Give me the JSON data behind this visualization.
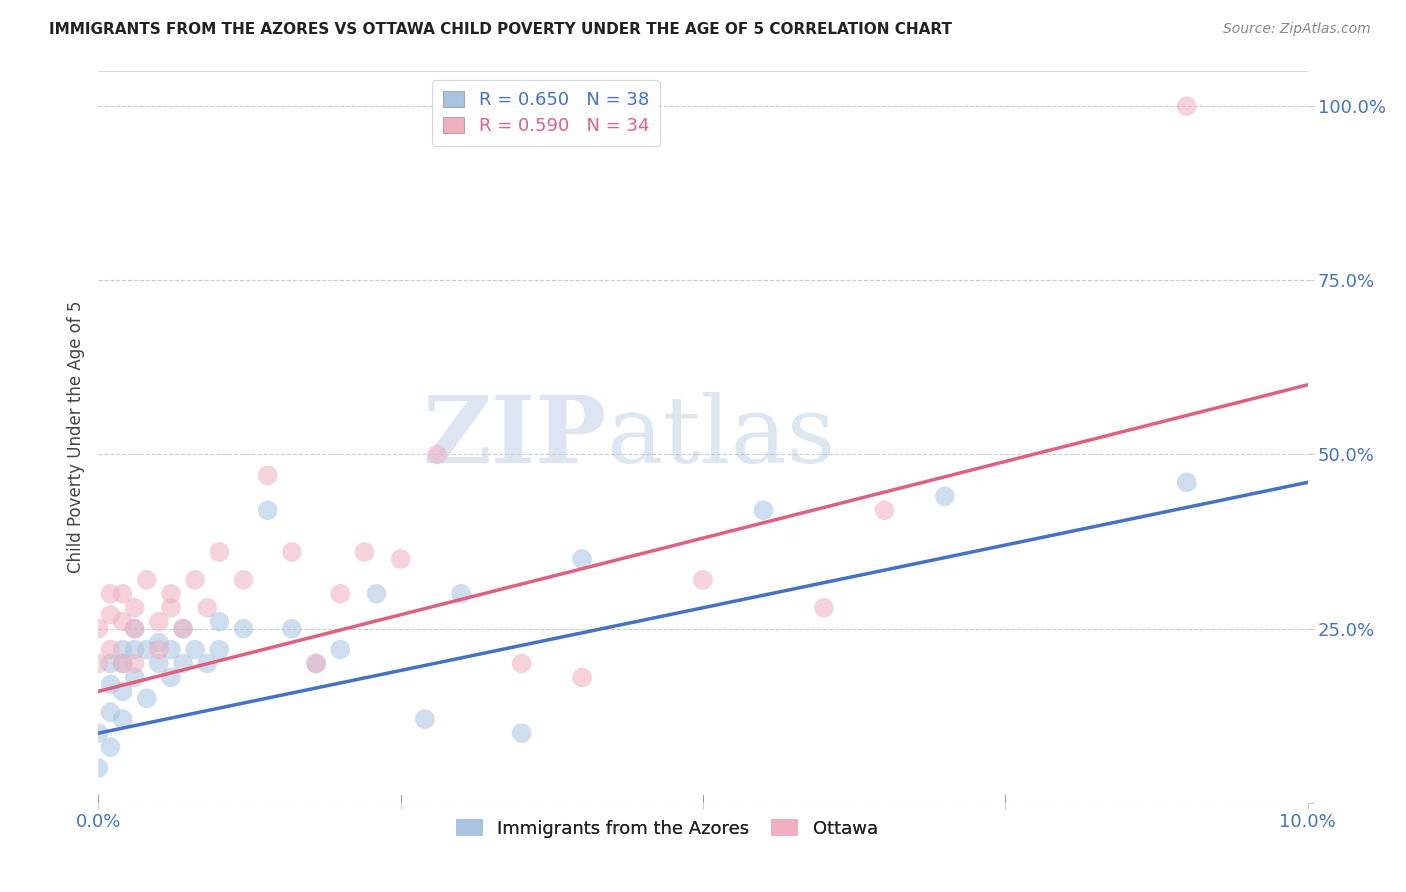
{
  "title": "IMMIGRANTS FROM THE AZORES VS OTTAWA CHILD POVERTY UNDER THE AGE OF 5 CORRELATION CHART",
  "source": "Source: ZipAtlas.com",
  "ylabel": "Child Poverty Under the Age of 5",
  "xlim": [
    0.0,
    0.1
  ],
  "ylim": [
    0.0,
    1.05
  ],
  "ytick_vals": [
    0.0,
    0.25,
    0.5,
    0.75,
    1.0
  ],
  "ytick_labels": [
    "",
    "25.0%",
    "50.0%",
    "75.0%",
    "100.0%"
  ],
  "xtick_vals": [
    0.0,
    0.025,
    0.05,
    0.075,
    0.1
  ],
  "xtick_labels": [
    "0.0%",
    "",
    "",
    "",
    "10.0%"
  ],
  "legend_label1": "R = 0.650   N = 38",
  "legend_label2": "R = 0.590   N = 34",
  "color_blue": "#a8c4e0",
  "color_pink": "#f0b0c0",
  "line_color_blue": "#4472c4",
  "line_color_pink": "#e06080",
  "watermark_zip": "ZIP",
  "watermark_atlas": "atlas",
  "blue_scatter_x": [
    0.0,
    0.0,
    0.001,
    0.001,
    0.001,
    0.001,
    0.002,
    0.002,
    0.002,
    0.002,
    0.003,
    0.003,
    0.003,
    0.004,
    0.004,
    0.005,
    0.005,
    0.006,
    0.006,
    0.007,
    0.007,
    0.008,
    0.009,
    0.01,
    0.01,
    0.012,
    0.014,
    0.016,
    0.018,
    0.02,
    0.023,
    0.027,
    0.03,
    0.035,
    0.04,
    0.055,
    0.07,
    0.09
  ],
  "blue_scatter_y": [
    0.05,
    0.1,
    0.08,
    0.13,
    0.17,
    0.2,
    0.12,
    0.16,
    0.2,
    0.22,
    0.18,
    0.22,
    0.25,
    0.15,
    0.22,
    0.2,
    0.23,
    0.18,
    0.22,
    0.2,
    0.25,
    0.22,
    0.2,
    0.22,
    0.26,
    0.25,
    0.42,
    0.25,
    0.2,
    0.22,
    0.3,
    0.12,
    0.3,
    0.1,
    0.35,
    0.42,
    0.44,
    0.46
  ],
  "pink_scatter_x": [
    0.0,
    0.0,
    0.001,
    0.001,
    0.001,
    0.002,
    0.002,
    0.002,
    0.003,
    0.003,
    0.003,
    0.004,
    0.005,
    0.005,
    0.006,
    0.006,
    0.007,
    0.008,
    0.009,
    0.01,
    0.012,
    0.014,
    0.016,
    0.018,
    0.02,
    0.022,
    0.025,
    0.028,
    0.035,
    0.04,
    0.05,
    0.06,
    0.065,
    0.09
  ],
  "pink_scatter_y": [
    0.2,
    0.25,
    0.22,
    0.27,
    0.3,
    0.2,
    0.26,
    0.3,
    0.2,
    0.25,
    0.28,
    0.32,
    0.22,
    0.26,
    0.28,
    0.3,
    0.25,
    0.32,
    0.28,
    0.36,
    0.32,
    0.47,
    0.36,
    0.2,
    0.3,
    0.36,
    0.35,
    0.5,
    0.2,
    0.18,
    0.32,
    0.28,
    0.42,
    1.0
  ],
  "blue_line_x": [
    0.0,
    0.1
  ],
  "blue_line_y": [
    0.1,
    0.46
  ],
  "pink_line_x": [
    0.0,
    0.1
  ],
  "pink_line_y": [
    0.16,
    0.6
  ]
}
